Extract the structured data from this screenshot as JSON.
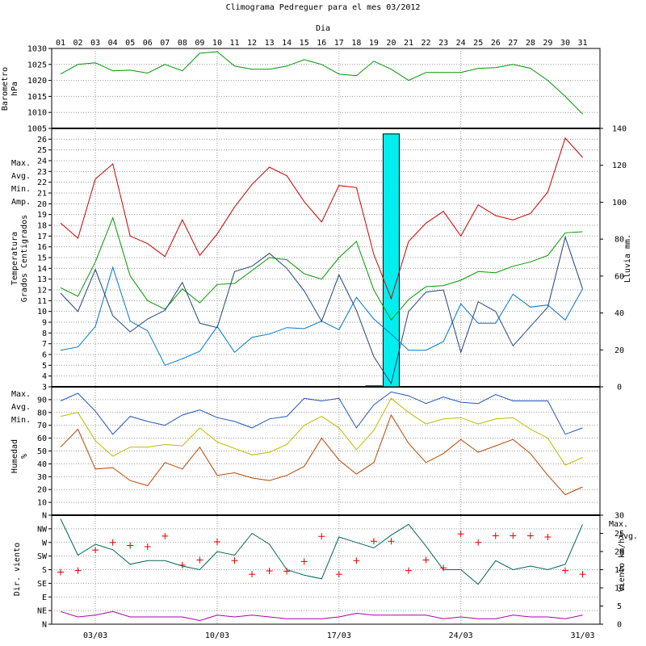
{
  "title": "Climograma Pedreguer para el mes 03/2012",
  "xaxis": {
    "title": "Dia",
    "days": [
      "01",
      "02",
      "03",
      "04",
      "05",
      "06",
      "07",
      "08",
      "09",
      "10",
      "11",
      "12",
      "13",
      "14",
      "15",
      "16",
      "17",
      "18",
      "19",
      "20",
      "21",
      "22",
      "23",
      "24",
      "25",
      "26",
      "27",
      "28",
      "29",
      "30",
      "31"
    ],
    "bottom_labels": [
      "03/03",
      "10/03",
      "17/03",
      "24/03",
      "31/03"
    ]
  },
  "colors": {
    "max": "#cc0000",
    "avg": "#009900",
    "min": "#0077cc",
    "amp": "#224477",
    "rain": "#00eeee",
    "baro": "#009900",
    "hum_max": "#2255bb",
    "hum_avg": "#bbbb00",
    "hum_min": "#bb4400",
    "wind_max": "#006655",
    "wind_avg": "#aa00aa",
    "dir": "#dd0000"
  },
  "panels": {
    "barometer": {
      "ylabel_lines": [
        "Barometro",
        "hPa"
      ],
      "ticks": [
        1005,
        1010,
        1015,
        1020,
        1025,
        1030
      ]
    },
    "temperature": {
      "ylabel_lines": [
        "Temperatura",
        "Grados Centigrados"
      ],
      "legend": [
        "Max.",
        "Avg.",
        "Min.",
        "Amp."
      ],
      "left_ticks": [
        3,
        4,
        5,
        6,
        7,
        8,
        9,
        10,
        11,
        12,
        13,
        14,
        15,
        16,
        17,
        18,
        19,
        20,
        21,
        22,
        23,
        24,
        25,
        26
      ],
      "right_label": "Lluvia mm.",
      "right_ticks": [
        0,
        20,
        40,
        60,
        80,
        100,
        120,
        140
      ]
    },
    "humidity": {
      "ylabel_lines": [
        "Humedad",
        "%"
      ],
      "legend": [
        "Max.",
        "Avg.",
        "Min."
      ],
      "ticks": [
        10,
        20,
        30,
        40,
        50,
        60,
        70,
        80,
        90
      ]
    },
    "wind": {
      "ylabel_lines": [
        "Dir. viento"
      ],
      "dir_ticks": [
        "N",
        "NE",
        "E",
        "SE",
        "S",
        "SW",
        "W",
        "NW",
        "N"
      ],
      "right_label": "Viento km/h",
      "right_ticks": [
        0,
        5,
        10,
        15,
        20,
        25,
        30
      ],
      "legend": [
        "Max.",
        "Avg."
      ]
    }
  },
  "chart_data": [
    {
      "type": "line",
      "title": "Climograma Pedreguer para el mes 03/2012",
      "xlabel": "Dia",
      "ylabel": "Barometro hPa",
      "ylim": [
        1005,
        1030
      ],
      "x": [
        1,
        2,
        3,
        4,
        5,
        6,
        7,
        8,
        9,
        10,
        11,
        12,
        13,
        14,
        15,
        16,
        17,
        18,
        19,
        20,
        21,
        22,
        23,
        24,
        25,
        26,
        27,
        28,
        29,
        30,
        31
      ],
      "series": [
        {
          "name": "Barometro",
          "values": [
            1022,
            1025,
            1025.5,
            1023,
            1023.2,
            1022.3,
            1025,
            1023,
            1028.5,
            1029,
            1024.5,
            1023.5,
            1023.5,
            1024.5,
            1026.5,
            1025,
            1022,
            1021.5,
            1026,
            1023.5,
            1020,
            1022.5,
            1022.5,
            1022.5,
            1023.8,
            1024,
            1025,
            1023.8,
            1020,
            1015,
            1009.5
          ]
        }
      ]
    },
    {
      "type": "line",
      "xlabel": "Dia",
      "ylabel": "Temperatura Grados Centigrados",
      "ylim": [
        3,
        27
      ],
      "x": [
        1,
        2,
        3,
        4,
        5,
        6,
        7,
        8,
        9,
        10,
        11,
        12,
        13,
        14,
        15,
        16,
        17,
        18,
        19,
        20,
        21,
        22,
        23,
        24,
        25,
        26,
        27,
        28,
        29,
        30,
        31
      ],
      "series": [
        {
          "name": "Max.",
          "values": [
            18.2,
            16.8,
            22.3,
            23.7,
            17,
            16.3,
            15.1,
            18.5,
            15.2,
            17.2,
            19.7,
            21.8,
            23.4,
            22.6,
            20.2,
            18.3,
            21.7,
            21.5,
            15.3,
            11.2,
            16.5,
            18.2,
            19.3,
            17,
            19.9,
            18.9,
            18.5,
            19.1,
            21.1,
            26.1,
            24.3
          ]
        },
        {
          "name": "Avg.",
          "values": [
            12.2,
            11.4,
            14.6,
            18.7,
            13.3,
            11,
            10.2,
            12.1,
            10.8,
            12.5,
            12.6,
            13.8,
            15,
            14.8,
            13.5,
            13,
            15,
            16.5,
            12,
            9.2,
            11.1,
            12.3,
            12.4,
            12.9,
            13.7,
            13.6,
            14.2,
            14.6,
            15.2,
            17.3,
            17.4
          ]
        },
        {
          "name": "Min.",
          "values": [
            6.4,
            6.7,
            8.6,
            14.1,
            9.1,
            8.2,
            5,
            5.6,
            6.3,
            8.6,
            6.2,
            7.6,
            7.9,
            8.5,
            8.4,
            9.1,
            8.3,
            11.3,
            9.3,
            7.9,
            6.4,
            6.4,
            7.2,
            10.7,
            8.9,
            8.9,
            11.6,
            10.4,
            10.6,
            9.2,
            12.1
          ]
        },
        {
          "name": "Amp.",
          "values": [
            11.7,
            10,
            13.9,
            9.6,
            8.1,
            9.3,
            10.1,
            12.7,
            8.9,
            8.5,
            13.7,
            14.2,
            15.4,
            14,
            11.9,
            9.1,
            13.4,
            10.1,
            5.8,
            3.3,
            10,
            11.8,
            12,
            6.2,
            10.9,
            10,
            6.8,
            8.6,
            10.4,
            16.9,
            12.1
          ]
        }
      ]
    },
    {
      "type": "bar",
      "ylabel": "Lluvia mm.",
      "ylim": [
        0,
        140
      ],
      "categories": [
        "19",
        "20"
      ],
      "values": [
        0.5,
        137
      ]
    },
    {
      "type": "line",
      "ylabel": "Humedad %",
      "ylim": [
        0,
        100
      ],
      "x": [
        1,
        2,
        3,
        4,
        5,
        6,
        7,
        8,
        9,
        10,
        11,
        12,
        13,
        14,
        15,
        16,
        17,
        18,
        19,
        20,
        21,
        22,
        23,
        24,
        25,
        26,
        27,
        28,
        29,
        30,
        31
      ],
      "series": [
        {
          "name": "Max.",
          "values": [
            89,
            95,
            81,
            63,
            77,
            73,
            70,
            78,
            82,
            76,
            73,
            68,
            75,
            77,
            91,
            89,
            91,
            68,
            86,
            96,
            93,
            87,
            92,
            88,
            87,
            94,
            89,
            89,
            89,
            63,
            68
          ]
        },
        {
          "name": "Avg.",
          "values": [
            77,
            80,
            58,
            46,
            53,
            53,
            55,
            54,
            68,
            57,
            52,
            47,
            49,
            55,
            70,
            77,
            68,
            51,
            66,
            91,
            80,
            71,
            75,
            76,
            71,
            75,
            76,
            67,
            60,
            39,
            45
          ]
        },
        {
          "name": "Min.",
          "values": [
            53,
            67,
            36,
            37,
            27,
            23,
            41,
            36,
            53,
            31,
            33,
            29,
            27,
            31,
            38,
            60,
            43,
            32,
            41,
            78,
            56,
            41,
            48,
            59,
            49,
            54,
            59,
            48,
            31,
            16,
            22
          ]
        }
      ]
    },
    {
      "type": "line",
      "ylabel": "Viento km/h",
      "ylim": [
        0,
        30
      ],
      "x": [
        1,
        2,
        3,
        4,
        5,
        6,
        7,
        8,
        9,
        10,
        11,
        12,
        13,
        14,
        15,
        16,
        17,
        18,
        19,
        20,
        21,
        22,
        23,
        24,
        25,
        26,
        27,
        28,
        29,
        30,
        31
      ],
      "series": [
        {
          "name": "Max.",
          "values": [
            29,
            19,
            22,
            20.5,
            16.5,
            17.5,
            17.5,
            16,
            15,
            20,
            19,
            25,
            22,
            15,
            13.5,
            12.5,
            24,
            22.5,
            21,
            24.5,
            27.5,
            21.5,
            15,
            15,
            11,
            17.5,
            15,
            16,
            15,
            16.5,
            27.5
          ]
        },
        {
          "name": "Avg.",
          "values": [
            3.5,
            2,
            2.5,
            3.5,
            2,
            2,
            2,
            2,
            1,
            2.5,
            2,
            2.5,
            2,
            1.5,
            1.5,
            1.5,
            2,
            3,
            2.5,
            2.5,
            2.5,
            2.5,
            1.5,
            2,
            1.5,
            1.5,
            2.5,
            2,
            2,
            1.5,
            2.5
          ]
        }
      ]
    },
    {
      "type": "scatter",
      "ylabel": "Dir. viento",
      "ylim": [
        0,
        360
      ],
      "x": [
        1,
        2,
        3,
        4,
        5,
        6,
        7,
        8,
        9,
        10,
        11,
        12,
        13,
        14,
        15,
        16,
        17,
        18,
        19,
        20,
        21,
        22,
        23,
        24,
        25,
        26,
        27,
        28,
        29,
        30,
        31
      ],
      "values": [
        172,
        177,
        245,
        270,
        260,
        256,
        291,
        195,
        212,
        272,
        210,
        165,
        176,
        175,
        207,
        290,
        165,
        210,
        274,
        274,
        177,
        212,
        186,
        298,
        270,
        292,
        292,
        292,
        288,
        177,
        165
      ]
    }
  ]
}
